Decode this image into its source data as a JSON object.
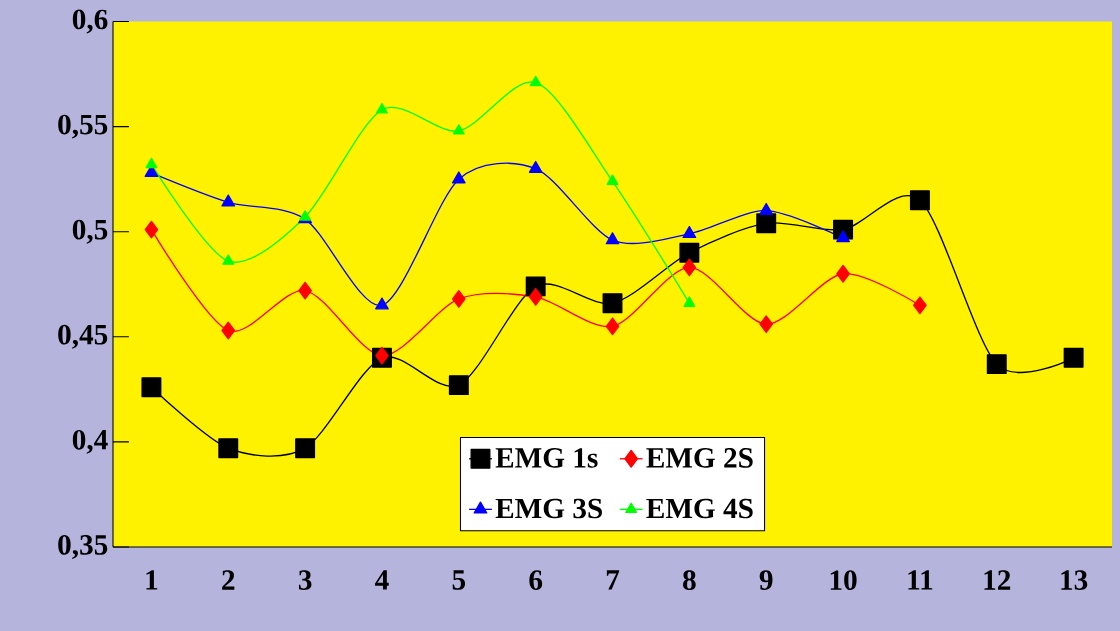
{
  "chart_data": {
    "type": "line",
    "categories": [
      "1",
      "2",
      "3",
      "4",
      "5",
      "6",
      "7",
      "8",
      "9",
      "10",
      "11",
      "12",
      "13"
    ],
    "ylim": [
      0.35,
      0.6
    ],
    "yticks": [
      {
        "value": 0.35,
        "label": "0,35"
      },
      {
        "value": 0.4,
        "label": "0,4"
      },
      {
        "value": 0.45,
        "label": "0,45"
      },
      {
        "value": 0.5,
        "label": "0,5"
      },
      {
        "value": 0.55,
        "label": "0,55"
      },
      {
        "value": 0.6,
        "label": "0,6"
      }
    ],
    "series": [
      {
        "name": "EMG 1s",
        "color": "#000000",
        "marker": "square",
        "values": [
          0.426,
          0.397,
          0.397,
          0.44,
          0.427,
          0.474,
          0.466,
          0.49,
          0.504,
          0.501,
          0.515,
          0.437,
          0.44
        ]
      },
      {
        "name": "EMG 2S",
        "color": "#ff0000",
        "marker": "diamond",
        "values": [
          0.501,
          0.453,
          0.472,
          0.441,
          0.468,
          0.469,
          0.455,
          0.483,
          0.456,
          0.48,
          0.465,
          null,
          null
        ]
      },
      {
        "name": "EMG 3S",
        "color": "#0000ff",
        "marker": "triangle",
        "values": [
          0.528,
          0.514,
          0.506,
          0.465,
          0.525,
          0.53,
          0.496,
          0.499,
          0.51,
          0.497,
          null,
          null,
          null
        ]
      },
      {
        "name": "EMG 4S",
        "color": "#00ff00",
        "marker": "triangle",
        "values": [
          0.532,
          0.486,
          0.507,
          0.558,
          0.548,
          0.571,
          0.524,
          0.466,
          null,
          null,
          null,
          null,
          null
        ]
      }
    ],
    "legend": "bottom",
    "grid": false
  }
}
